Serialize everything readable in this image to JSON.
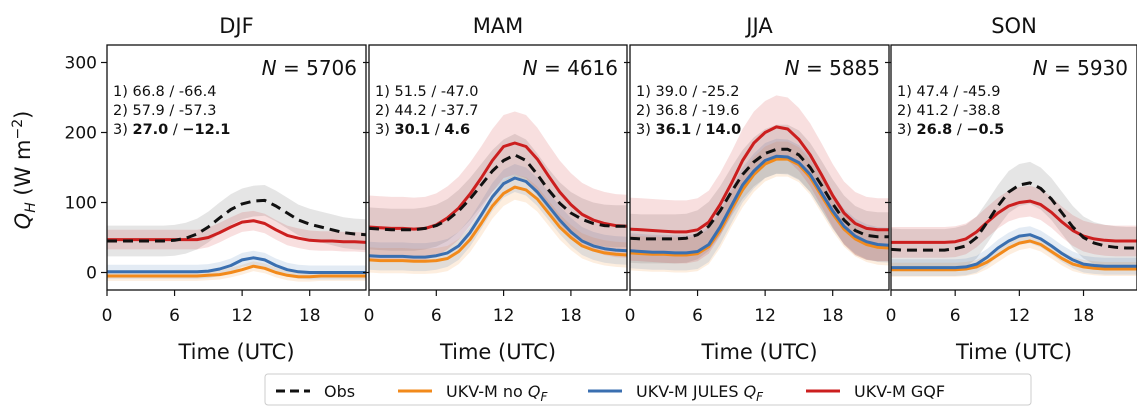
{
  "chart_data": {
    "type": "line",
    "ylabel": "Q_H (W m⁻²)",
    "ylabel_parts": {
      "sym": "Q",
      "sub": "H",
      "unit": " (W m",
      "exp": "−2",
      "close": ")"
    },
    "ylim": [
      -25,
      325
    ],
    "yticks": [
      0,
      100,
      200,
      300
    ],
    "xlim": [
      0,
      23
    ],
    "xticks": [
      0,
      6,
      12,
      18
    ],
    "xlabel": "Time (UTC)",
    "grid": false,
    "legend_position": "bottom",
    "legend": [
      {
        "key": "obs",
        "label": "Obs",
        "color": "#111111",
        "dashed": true
      },
      {
        "key": "nqf",
        "label": "UKV-M no ",
        "qf": true,
        "color": "#f28a1b",
        "dashed": false
      },
      {
        "key": "jules",
        "label": "UKV-M JULES ",
        "qf": true,
        "color": "#3a6fb0",
        "dashed": false
      },
      {
        "key": "gqf",
        "label": "UKV-M GQF",
        "qf": false,
        "color": "#cc1f1f",
        "dashed": false
      }
    ],
    "qf_symbol": {
      "sym": "Q",
      "sub": "F"
    },
    "hours": [
      0,
      1,
      2,
      3,
      4,
      5,
      6,
      7,
      8,
      9,
      10,
      11,
      12,
      13,
      14,
      15,
      16,
      17,
      18,
      19,
      20,
      21,
      22,
      23
    ],
    "panels": [
      {
        "title": "DJF",
        "n_label": "N = 5706",
        "stats": [
          {
            "idx": "1)",
            "a": "66.8",
            "b": "-66.4",
            "bold": false
          },
          {
            "idx": "2)",
            "a": "57.9",
            "b": "-57.3",
            "bold": false
          },
          {
            "idx": "3)",
            "a": "27.0",
            "b": "−12.1",
            "bold": true
          }
        ],
        "series": {
          "obs": [
            45,
            45,
            45,
            45,
            45,
            45,
            46,
            49,
            55,
            65,
            78,
            90,
            98,
            102,
            103,
            95,
            85,
            75,
            69,
            65,
            61,
            57,
            55,
            54
          ],
          "nqf": [
            -5,
            -5,
            -5,
            -5,
            -5,
            -5,
            -5,
            -5,
            -5,
            -4,
            -3,
            0,
            4,
            9,
            6,
            0,
            -4,
            -6,
            -6,
            -5,
            -5,
            -5,
            -5,
            -5
          ],
          "jules": [
            1,
            1,
            1,
            1,
            1,
            1,
            1,
            1,
            1,
            2,
            5,
            10,
            18,
            21,
            18,
            10,
            4,
            1,
            0,
            0,
            0,
            0,
            0,
            0
          ],
          "gqf": [
            47,
            47,
            47,
            47,
            47,
            47,
            47,
            47,
            47,
            50,
            57,
            65,
            72,
            74,
            70,
            61,
            53,
            49,
            46,
            45,
            45,
            44,
            44,
            43
          ]
        },
        "band_width": {
          "obs": 22,
          "nqf": 7,
          "jules": 10,
          "gqf": 14
        }
      },
      {
        "title": "MAM",
        "n_label": "N = 4616",
        "stats": [
          {
            "idx": "1)",
            "a": "51.5",
            "b": "-47.0",
            "bold": false
          },
          {
            "idx": "2)",
            "a": "44.2",
            "b": "-37.7",
            "bold": false
          },
          {
            "idx": "3)",
            "a": "30.1",
            "b": "4.6",
            "bold": true
          }
        ],
        "series": {
          "obs": [
            63,
            62,
            61,
            61,
            61,
            63,
            67,
            75,
            88,
            105,
            125,
            145,
            160,
            168,
            160,
            140,
            118,
            99,
            85,
            76,
            70,
            67,
            66,
            66
          ],
          "nqf": [
            18,
            17,
            17,
            17,
            16,
            16,
            17,
            20,
            30,
            47,
            70,
            95,
            113,
            122,
            118,
            105,
            85,
            65,
            50,
            38,
            32,
            28,
            26,
            25
          ],
          "jules": [
            24,
            23,
            23,
            23,
            22,
            22,
            24,
            28,
            38,
            57,
            82,
            108,
            127,
            135,
            130,
            115,
            95,
            75,
            58,
            45,
            38,
            34,
            32,
            31
          ],
          "gqf": [
            65,
            64,
            63,
            63,
            62,
            63,
            68,
            78,
            92,
            112,
            135,
            160,
            180,
            185,
            180,
            162,
            138,
            115,
            97,
            83,
            75,
            70,
            67,
            66
          ]
        },
        "band_width": {
          "obs": 30,
          "nqf": 18,
          "jules": 20,
          "gqf": 45
        }
      },
      {
        "title": "JJA",
        "n_label": "N = 5885",
        "stats": [
          {
            "idx": "1)",
            "a": "39.0",
            "b": "-25.2",
            "bold": false
          },
          {
            "idx": "2)",
            "a": "36.8",
            "b": "-19.6",
            "bold": false
          },
          {
            "idx": "3)",
            "a": "36.1",
            "b": "14.0",
            "bold": true
          }
        ],
        "series": {
          "obs": [
            49,
            48,
            48,
            48,
            48,
            49,
            54,
            66,
            88,
            115,
            140,
            158,
            170,
            176,
            176,
            168,
            150,
            125,
            98,
            75,
            60,
            53,
            51,
            51
          ],
          "nqf": [
            28,
            27,
            26,
            26,
            25,
            25,
            27,
            37,
            60,
            90,
            118,
            140,
            155,
            162,
            162,
            154,
            136,
            110,
            84,
            62,
            48,
            40,
            36,
            35
          ],
          "jules": [
            31,
            30,
            29,
            29,
            28,
            28,
            30,
            40,
            65,
            95,
            125,
            145,
            160,
            166,
            165,
            157,
            140,
            114,
            88,
            66,
            52,
            44,
            40,
            39
          ],
          "gqf": [
            62,
            61,
            60,
            59,
            58,
            58,
            61,
            72,
            97,
            127,
            160,
            185,
            200,
            208,
            205,
            190,
            168,
            140,
            110,
            85,
            70,
            63,
            61,
            61
          ]
        },
        "band_width": {
          "obs": 35,
          "nqf": 25,
          "jules": 25,
          "gqf": 45
        }
      },
      {
        "title": "SON",
        "n_label": "N = 5930",
        "stats": [
          {
            "idx": "1)",
            "a": "47.4",
            "b": "-45.9",
            "bold": false
          },
          {
            "idx": "2)",
            "a": "41.2",
            "b": "-38.8",
            "bold": false
          },
          {
            "idx": "3)",
            "a": "26.8",
            "b": "−0.5",
            "bold": true
          }
        ],
        "series": {
          "obs": [
            33,
            32,
            32,
            32,
            32,
            32,
            34,
            38,
            50,
            72,
            95,
            115,
            125,
            128,
            120,
            105,
            85,
            65,
            50,
            42,
            38,
            36,
            35,
            35
          ],
          "nqf": [
            4,
            4,
            4,
            4,
            4,
            4,
            4,
            5,
            8,
            15,
            25,
            35,
            42,
            45,
            40,
            30,
            20,
            12,
            8,
            6,
            5,
            5,
            5,
            5
          ],
          "jules": [
            7,
            7,
            7,
            7,
            7,
            7,
            7,
            8,
            12,
            22,
            35,
            45,
            52,
            54,
            48,
            38,
            27,
            18,
            12,
            10,
            9,
            9,
            9,
            9
          ],
          "gqf": [
            43,
            43,
            43,
            43,
            43,
            43,
            44,
            48,
            58,
            72,
            85,
            95,
            100,
            102,
            97,
            86,
            72,
            60,
            52,
            48,
            46,
            45,
            45,
            45
          ]
        },
        "band_width": {
          "obs": 30,
          "nqf": 10,
          "jules": 12,
          "gqf": 22
        }
      }
    ]
  }
}
